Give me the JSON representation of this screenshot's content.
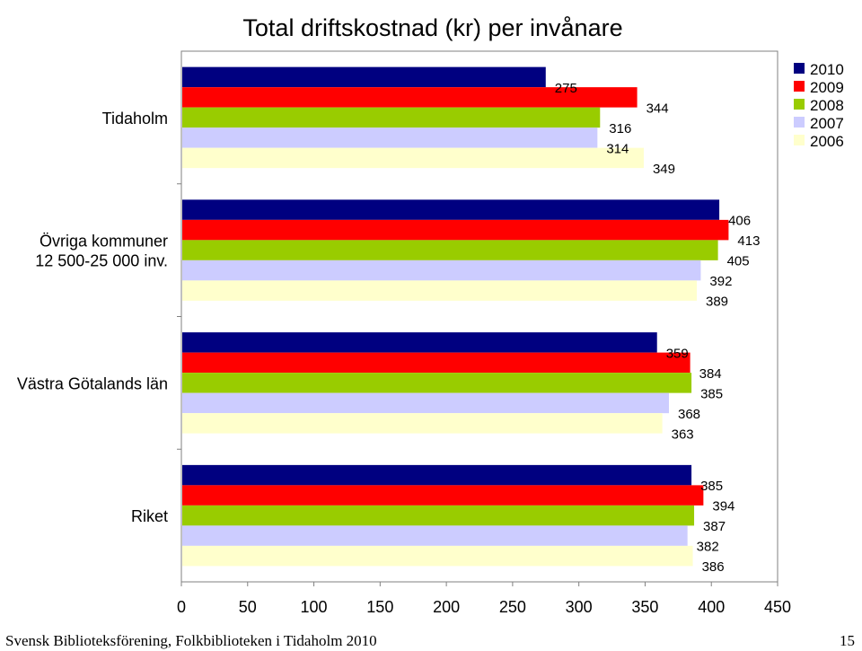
{
  "chart_data": {
    "type": "bar",
    "orientation": "horizontal",
    "title": "Total driftskostnad (kr) per invånare",
    "categories": [
      [
        "Tidaholm"
      ],
      [
        "Övriga kommuner",
        "12 500-25 000 inv."
      ],
      [
        "Västra Götalands län"
      ],
      [
        "Riket"
      ]
    ],
    "series": [
      {
        "name": "2010",
        "color": "#000080",
        "values": [
          275,
          406,
          359,
          385
        ]
      },
      {
        "name": "2009",
        "color": "#ff0000",
        "values": [
          344,
          413,
          384,
          394
        ]
      },
      {
        "name": "2008",
        "color": "#99cc00",
        "values": [
          316,
          405,
          385,
          387
        ]
      },
      {
        "name": "2007",
        "color": "#ccccff",
        "values": [
          314,
          392,
          368,
          382
        ]
      },
      {
        "name": "2006",
        "color": "#ffffcc",
        "values": [
          349,
          389,
          363,
          386
        ]
      }
    ],
    "xlim": [
      0,
      450
    ],
    "xticks": [
      0,
      50,
      100,
      150,
      200,
      250,
      300,
      350,
      400,
      450
    ],
    "xlabel": "",
    "ylabel": "",
    "legend": "top-right",
    "grid": false,
    "background": "#ffffff"
  },
  "footer": {
    "source": "Svensk Biblioteksförening, Folkbiblioteken i Tidaholm 2010",
    "page_number": "15"
  }
}
